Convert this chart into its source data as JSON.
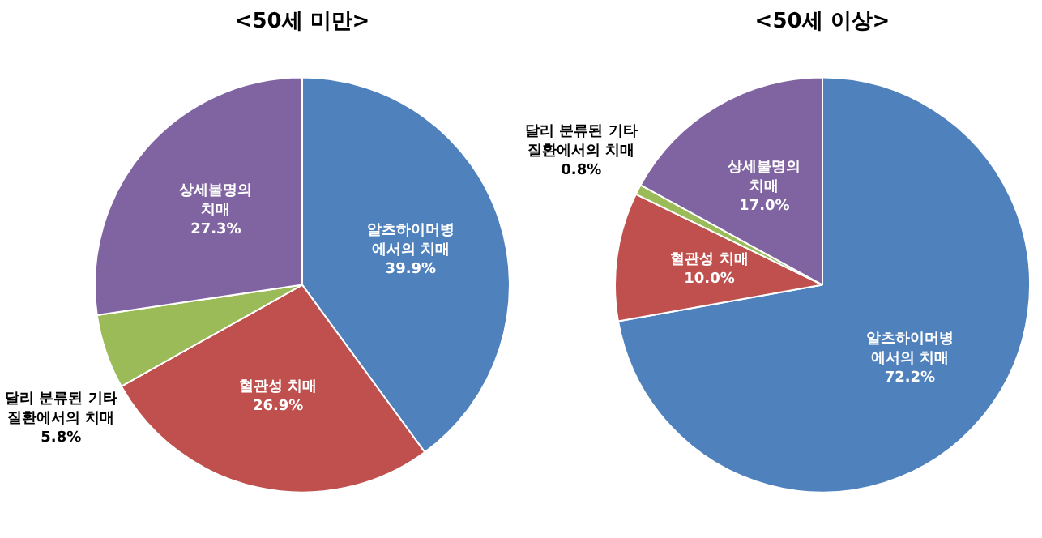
{
  "chart_data": [
    {
      "type": "pie",
      "title": "<50세 미만>",
      "categories": [
        "알츠하이머병\n에서의 치매",
        "혈관성 치매",
        "달리 분류된 기타\n질환에서의 치매",
        "상세불명의\n치매"
      ],
      "values": [
        39.9,
        26.9,
        5.8,
        27.3
      ],
      "value_labels": [
        "39.9%",
        "26.9%",
        "5.8%",
        "27.3%"
      ],
      "colors": [
        "#4f81bd",
        "#c0504d",
        "#9bbb59",
        "#8064a2"
      ],
      "legend": false
    },
    {
      "type": "pie",
      "title": "<50세 이상>",
      "categories": [
        "알츠하이머병\n에서의 치매",
        "혈관성 치매",
        "달리 분류된 기타\n질환에서의 치매",
        "상세불명의\n치매"
      ],
      "values": [
        72.2,
        10.0,
        0.8,
        17.0
      ],
      "value_labels": [
        "72.2%",
        "10.0%",
        "0.8%",
        "17.0%"
      ],
      "colors": [
        "#4f81bd",
        "#c0504d",
        "#9bbb59",
        "#8064a2"
      ],
      "legend": false
    }
  ]
}
